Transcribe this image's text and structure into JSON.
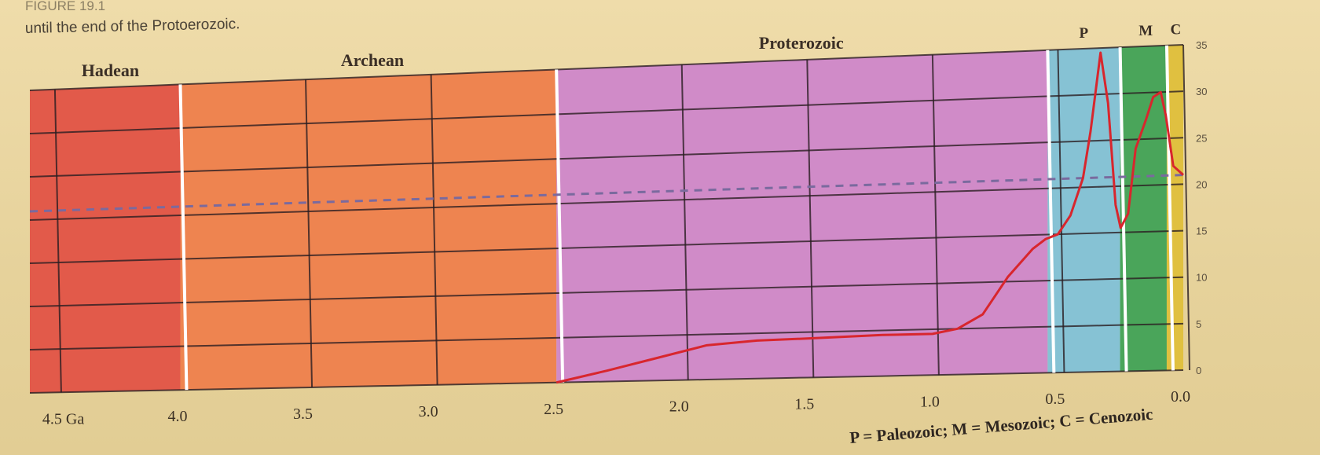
{
  "caption": {
    "line1": "FIGURE 19.1",
    "line2": "until the end of the Protoerozoic."
  },
  "legend_note": "P = Paleozoic; M = Mesozoic; C = Cenozoic",
  "colors": {
    "hadean": "#e25a4a",
    "archean": "#ee8450",
    "proterozoic": "#d08bc8",
    "paleozoic": "#86c2d4",
    "mesozoic": "#4aa55a",
    "cenozoic": "#e0c040",
    "curve": "#d8262d",
    "dashed": "#7a6a9e",
    "grid": "#2a1e22"
  },
  "chart_data": {
    "type": "line",
    "x_unit": "Ga",
    "xlim": [
      4.6,
      0.0
    ],
    "ylim": [
      0,
      35
    ],
    "y_ticks": [
      "0",
      "5",
      "10",
      "15",
      "20",
      "25",
      "30",
      "35"
    ],
    "x_ticks": [
      {
        "value": 4.5,
        "label": "4.5 Ga"
      },
      {
        "value": 4.0,
        "label": "4.0"
      },
      {
        "value": 3.5,
        "label": "3.5"
      },
      {
        "value": 3.0,
        "label": "3.0"
      },
      {
        "value": 2.5,
        "label": "2.5"
      },
      {
        "value": 2.0,
        "label": "2.0"
      },
      {
        "value": 1.5,
        "label": "1.5"
      },
      {
        "value": 1.0,
        "label": "1.0"
      },
      {
        "value": 0.5,
        "label": "0.5"
      },
      {
        "value": 0.0,
        "label": "0.0"
      }
    ],
    "eras": [
      {
        "name": "Hadean",
        "label": "Hadean",
        "start": 4.6,
        "end": 4.0,
        "color_key": "hadean"
      },
      {
        "name": "Archean",
        "label": "Archean",
        "start": 4.0,
        "end": 2.5,
        "color_key": "archean"
      },
      {
        "name": "Proterozoic",
        "label": "Proterozoic",
        "start": 2.5,
        "end": 0.541,
        "color_key": "proterozoic"
      },
      {
        "name": "Paleozoic",
        "label": "P",
        "start": 0.541,
        "end": 0.252,
        "color_key": "paleozoic"
      },
      {
        "name": "Mesozoic",
        "label": "M",
        "start": 0.252,
        "end": 0.066,
        "color_key": "mesozoic"
      },
      {
        "name": "Cenozoic",
        "label": "C",
        "start": 0.066,
        "end": 0.0,
        "color_key": "cenozoic"
      }
    ],
    "reference_level": 21,
    "series": [
      {
        "x": [
          2.5,
          2.3,
          2.1,
          1.9,
          1.7,
          1.5,
          1.2,
          1.0,
          0.9,
          0.8,
          0.7,
          0.6,
          0.55,
          0.5,
          0.45,
          0.4,
          0.37,
          0.33,
          0.3,
          0.27,
          0.25,
          0.22,
          0.19,
          0.15,
          0.12,
          0.09,
          0.07,
          0.04,
          0.0
        ],
        "y": [
          0,
          1.2,
          2.5,
          3.8,
          4.2,
          4.3,
          4.5,
          4.5,
          5.0,
          6.5,
          10.5,
          13.5,
          14.5,
          15.0,
          17.0,
          21.0,
          26.0,
          34.5,
          29.0,
          18.0,
          15.5,
          17.0,
          24.0,
          27.0,
          29.5,
          30.0,
          27.5,
          22.0,
          21.0
        ]
      }
    ]
  }
}
